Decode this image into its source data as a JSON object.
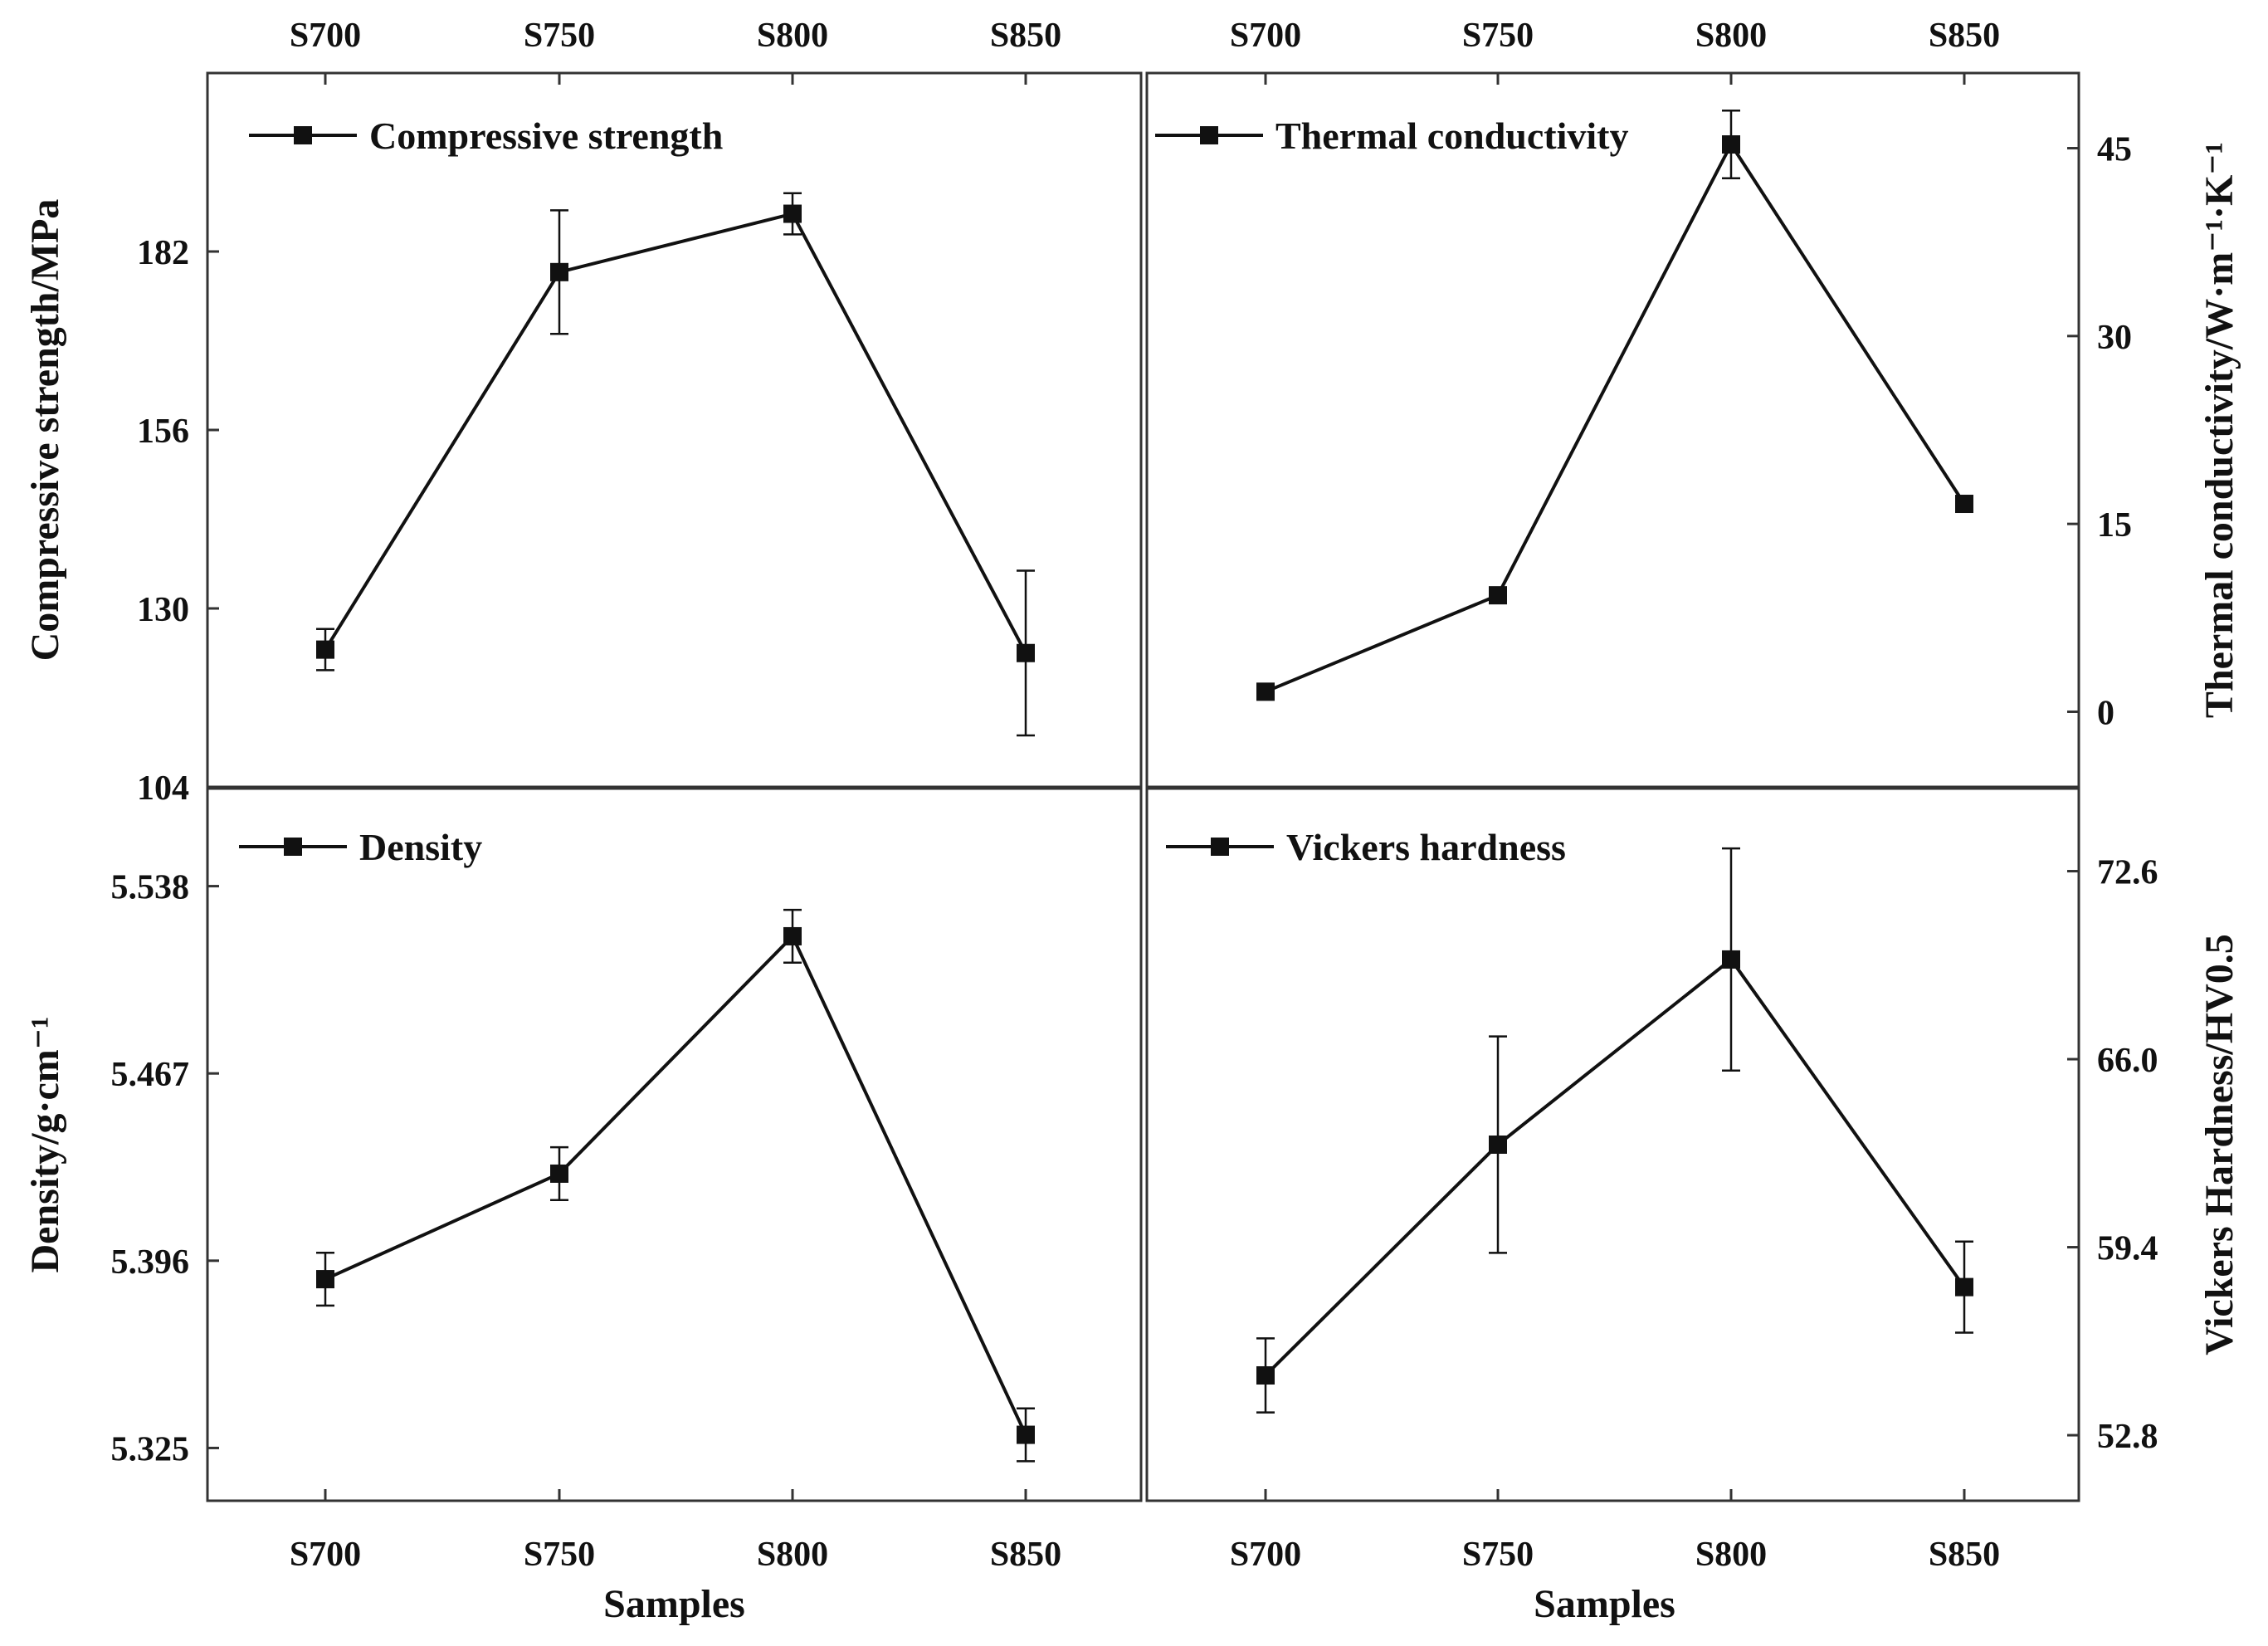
{
  "chart_data": [
    {
      "type": "line",
      "panel": "top-left",
      "categories": [
        "S700",
        "S750",
        "S800",
        "S850"
      ],
      "series": [
        {
          "name": "Compressive strength",
          "values": [
            124,
            179,
            187.5,
            123.5
          ],
          "errors": [
            3,
            9,
            3,
            12
          ]
        }
      ],
      "ylabel": "Compressive strength/MPa",
      "ylim": [
        104,
        208
      ],
      "yticks": [
        104,
        130,
        156,
        182
      ],
      "ytick_labels": [
        "104",
        "130",
        "156",
        "182"
      ],
      "legend_position": "top-left"
    },
    {
      "type": "line",
      "panel": "top-right",
      "categories": [
        "S700",
        "S750",
        "S800",
        "S850"
      ],
      "series": [
        {
          "name": "Thermal conductivity",
          "values": [
            1.6,
            9.3,
            45.3,
            16.6
          ],
          "errors": [
            0.3,
            0.5,
            2.7,
            0.6
          ]
        }
      ],
      "ylabel": "Thermal conductivity/W·m⁻¹·K⁻¹",
      "ylim": [
        -6,
        51
      ],
      "yticks": [
        0,
        15,
        30,
        45
      ],
      "ytick_labels": [
        "0",
        "15",
        "30",
        "45"
      ],
      "legend_position": "top-left"
    },
    {
      "type": "line",
      "panel": "bottom-left",
      "categories": [
        "S700",
        "S750",
        "S800",
        "S850"
      ],
      "series": [
        {
          "name": "Density",
          "values": [
            5.389,
            5.429,
            5.519,
            5.33
          ],
          "errors": [
            0.01,
            0.01,
            0.01,
            0.01
          ]
        }
      ],
      "xlabel": "Samples",
      "ylabel": "Density/g·cm⁻¹",
      "ylim": [
        5.305,
        5.575
      ],
      "yticks": [
        5.325,
        5.396,
        5.467,
        5.538
      ],
      "ytick_labels": [
        "5.325",
        "5.396",
        "5.467",
        "5.538"
      ],
      "legend_position": "top-left"
    },
    {
      "type": "line",
      "panel": "bottom-right",
      "categories": [
        "S700",
        "S750",
        "S800",
        "S850"
      ],
      "series": [
        {
          "name": "Vickers hardness",
          "values": [
            54.9,
            63.0,
            69.5,
            58.0
          ],
          "errors": [
            1.3,
            3.8,
            3.9,
            1.6
          ]
        }
      ],
      "xlabel": "Samples",
      "ylabel": "Vickers Hardness/HV0.5",
      "ylim": [
        50.5,
        75.5
      ],
      "yticks": [
        52.8,
        59.4,
        66.0,
        72.6
      ],
      "ytick_labels": [
        "52.8",
        "59.4",
        "66.0",
        "72.6"
      ],
      "legend_position": "top-left"
    }
  ]
}
